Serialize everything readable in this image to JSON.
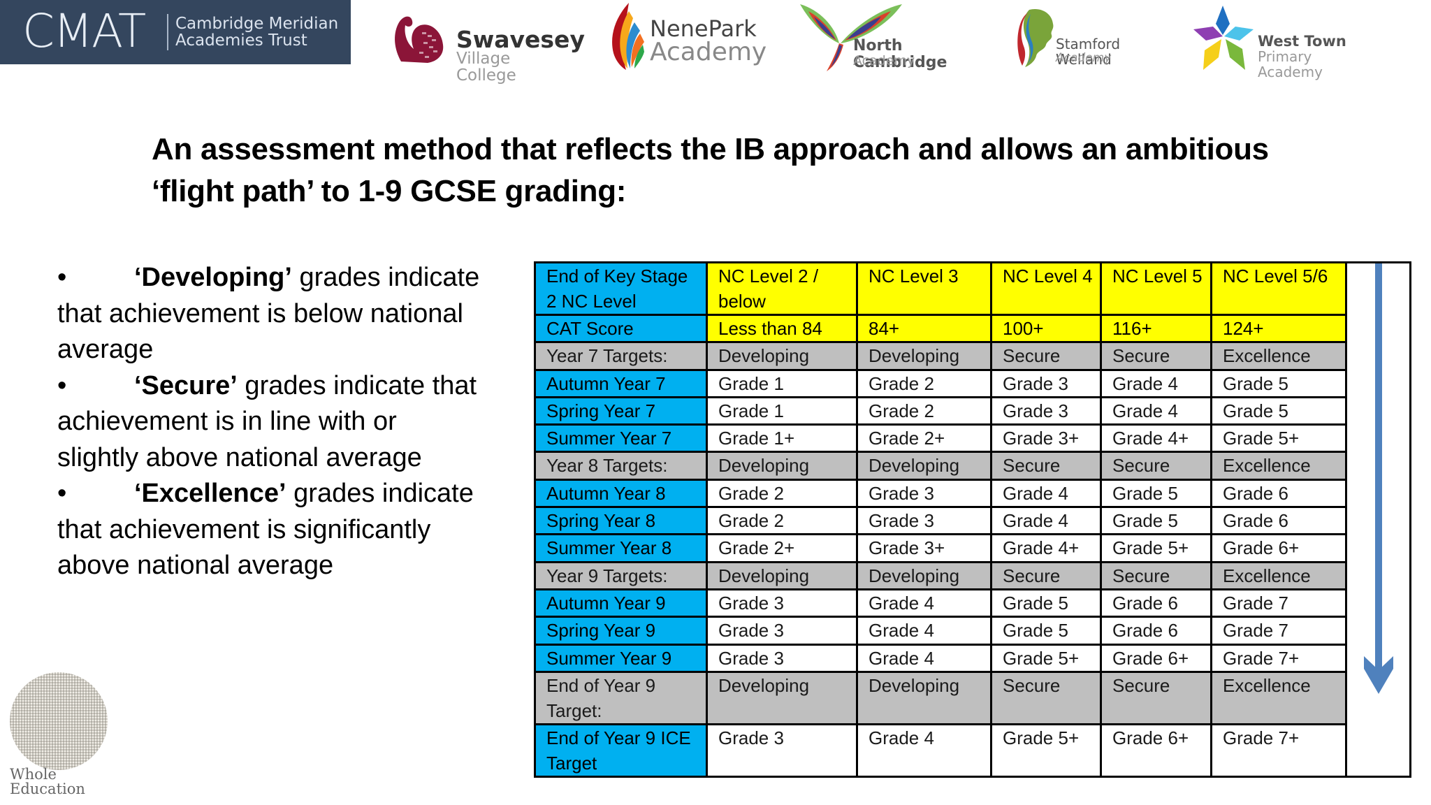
{
  "logos": {
    "cmat": {
      "mark": "CMAT",
      "line1": "Cambridge Meridian",
      "line2": "Academies Trust",
      "bg_color": "#34465e"
    },
    "swavesey": {
      "line1": "Swavesey",
      "line2": "Village College",
      "color": "#8b1538"
    },
    "nenepark": {
      "line1": "NenePark",
      "line2": "Academy"
    },
    "north_cambridge": {
      "line1": "North Cambridge",
      "line2": "Academy"
    },
    "stamford_welland": {
      "line1": "Stamford Welland",
      "line2": "Academy"
    },
    "west_town": {
      "line1": "West Town",
      "line2": "Primary Academy"
    },
    "whole_education": {
      "line1": "Whole",
      "line2": "Education"
    }
  },
  "heading": {
    "line1": "An assessment method that reflects the IB approach and allows an ambitious",
    "line2": "‘flight path’ to 1-9 GCSE grading:"
  },
  "bullets": [
    {
      "term": "‘Developing’",
      "rest_first": " grades indicate",
      "lines": [
        "that achievement is below national",
        "average"
      ]
    },
    {
      "term": "‘Secure’",
      "rest_first": " grades indicate that",
      "lines": [
        "achievement is in line with or",
        "slightly above national average"
      ]
    },
    {
      "term": "‘Excellence’",
      "rest_first": " grades indicate",
      "lines": [
        "that achievement is significantly",
        "above national average"
      ]
    }
  ],
  "colors": {
    "label_cyan": "#00b0f0",
    "header_yellow": "#ffff00",
    "target_gray": "#bfbfbf",
    "arrow_blue": "#4f81bd"
  },
  "table": {
    "header": {
      "label_line1": "End of Key Stage",
      "label_line2": "2 NC Level",
      "cols": [
        {
          "line1": "NC Level 2 /",
          "line2": "below"
        },
        {
          "line1": "NC Level 3",
          "line2": ""
        },
        {
          "line1": "NC Level 4",
          "line2": ""
        },
        {
          "line1": "NC Level 5",
          "line2": ""
        },
        {
          "line1": "NC Level 5/6",
          "line2": ""
        }
      ]
    },
    "cat_row": {
      "label": "CAT Score",
      "values": [
        "Less than 84",
        "84+",
        "100+",
        "116+",
        "124+"
      ]
    },
    "rows": [
      {
        "type": "target",
        "label": "Year 7 Targets:",
        "values": [
          "Developing",
          "Developing",
          "Secure",
          "Secure",
          "Excellence"
        ]
      },
      {
        "type": "term",
        "label": "Autumn Year 7",
        "values": [
          "Grade 1",
          "Grade 2",
          "Grade 3",
          "Grade 4",
          "Grade 5"
        ]
      },
      {
        "type": "term",
        "label": "Spring Year 7",
        "values": [
          "Grade 1",
          "Grade 2",
          "Grade 3",
          "Grade 4",
          "Grade 5"
        ]
      },
      {
        "type": "term",
        "label": "Summer Year 7",
        "values": [
          "Grade 1+",
          "Grade 2+",
          "Grade 3+",
          "Grade 4+",
          "Grade 5+"
        ]
      },
      {
        "type": "target",
        "label": "Year 8 Targets:",
        "values": [
          "Developing",
          "Developing",
          "Secure",
          "Secure",
          "Excellence"
        ]
      },
      {
        "type": "term",
        "label": "Autumn Year 8",
        "values": [
          "Grade 2",
          "Grade 3",
          "Grade 4",
          "Grade 5",
          "Grade 6"
        ]
      },
      {
        "type": "term",
        "label": "Spring Year 8",
        "values": [
          "Grade 2",
          "Grade 3",
          "Grade 4",
          "Grade 5",
          "Grade 6"
        ]
      },
      {
        "type": "term",
        "label": "Summer Year 8",
        "values": [
          "Grade 2+",
          "Grade 3+",
          "Grade 4+",
          "Grade 5+",
          "Grade 6+"
        ]
      },
      {
        "type": "target",
        "label": "Year 9 Targets:",
        "values": [
          "Developing",
          "Developing",
          "Secure",
          "Secure",
          "Excellence"
        ]
      },
      {
        "type": "term",
        "label": "Autumn Year 9",
        "values": [
          "Grade 3",
          "Grade 4",
          "Grade 5",
          "Grade 6",
          "Grade 7"
        ]
      },
      {
        "type": "term",
        "label": "Spring Year 9",
        "values": [
          "Grade 3",
          "Grade 4",
          "Grade 5",
          "Grade 6",
          "Grade 7"
        ]
      },
      {
        "type": "term",
        "label": "Summer Year 9",
        "values": [
          "Grade 3",
          "Grade 4",
          "Grade 5+",
          "Grade 6+",
          "Grade 7+"
        ]
      }
    ],
    "end_target_row": {
      "label_line1": "End of Year 9",
      "label_line2": "Target:",
      "values": [
        "Developing",
        "Developing",
        "Secure",
        "Secure",
        "Excellence"
      ]
    },
    "ice_row": {
      "label_line1": "End of Year 9 ICE",
      "label_line2": "Target",
      "values": [
        "Grade 3",
        "Grade 4",
        "Grade 5+",
        "Grade 6+",
        "Grade 7+"
      ]
    }
  }
}
